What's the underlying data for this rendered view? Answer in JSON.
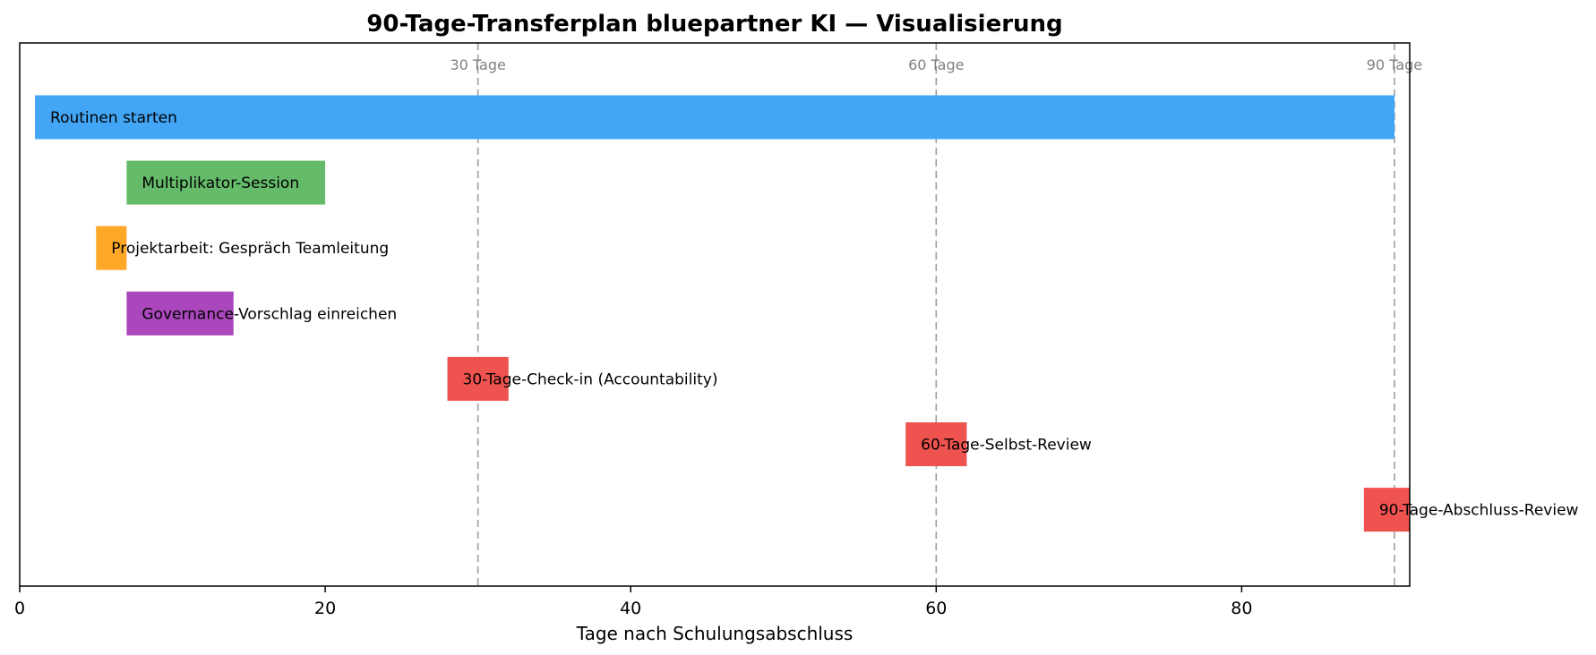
{
  "chart_data": {
    "type": "bar",
    "orientation": "horizontal",
    "title": "90-Tage-Transferplan bluepartner KI — Visualisierung",
    "xlabel": "Tage nach Schulungsabschluss",
    "ylabel": "",
    "xlim": [
      0,
      91
    ],
    "xticks": [
      0,
      20,
      40,
      60,
      80
    ],
    "grid": false,
    "tasks": [
      {
        "label": "Routinen starten",
        "start": 1,
        "end": 90,
        "color": "#42a5f5"
      },
      {
        "label": "Multiplikator-Session",
        "start": 7,
        "end": 20,
        "color": "#66bb6a"
      },
      {
        "label": "Projektarbeit: Gespräch Teamleitung",
        "start": 5,
        "end": 7,
        "color": "#ffa726"
      },
      {
        "label": "Governance-Vorschlag einreichen",
        "start": 7,
        "end": 14,
        "color": "#ab47bc"
      },
      {
        "label": "30-Tage-Check-in (Accountability)",
        "start": 28,
        "end": 32,
        "color": "#ef5350"
      },
      {
        "label": "60-Tage-Selbst-Review",
        "start": 58,
        "end": 62,
        "color": "#ef5350"
      },
      {
        "label": "90-Tage-Abschluss-Review",
        "start": 88,
        "end": 92,
        "color": "#ef5350"
      }
    ],
    "reference_lines": [
      {
        "x": 30,
        "label": "30 Tage"
      },
      {
        "x": 60,
        "label": "60 Tage"
      },
      {
        "x": 90,
        "label": "90 Tage"
      }
    ]
  }
}
